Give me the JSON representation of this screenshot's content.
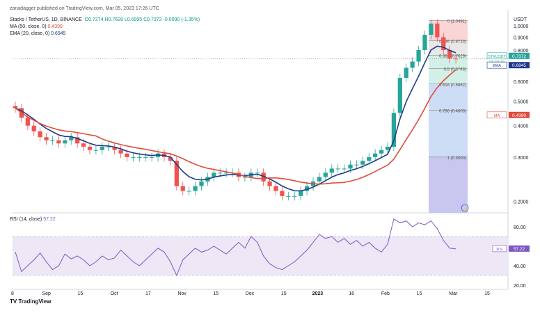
{
  "header": {
    "published": "zanadagger published on TradingView.com, Mar 05, 2023 17:26 UTC",
    "symbol": "Stacks / TetherUS, 1D, BINANCE",
    "ohlc": "O0.7274 H0.7628 L0.6995 C0.7372 -0.0090 (-1.35%)",
    "ma_label": "MA (50, close, 0)",
    "ma_value": "0.4399",
    "ema_label": "EMA (20, close, 0)",
    "ema_value": "0.6945",
    "rsi_label": "RSI (14, close)",
    "rsi_value": "57.22",
    "brand": "TradingView"
  },
  "colors": {
    "up": "#26a69a",
    "down": "#ef5350",
    "ema": "#1e3a8a",
    "ma": "#e04b3c",
    "rsi": "#7e57c2",
    "rsi_band": "#ede7f6",
    "fib_red": "#f8d0d0",
    "fib_green": "#cdeee4",
    "fib_blue": "#c9d9f5",
    "fib_gray": "#e6e6e6",
    "fib_lavender": "#c9c6ef"
  },
  "chart_data": [
    {
      "type": "candlestick",
      "title": "Stacks / TetherUS, 1D, BINANCE",
      "unit": "USDT",
      "y_scale": "log",
      "y_ticks": [
        "1.0000",
        "0.9000",
        "0.8000",
        "0.7000",
        "0.6000",
        "0.5000",
        "0.4000",
        "0.3000",
        "0.2000"
      ],
      "y_tick_values": [
        1.0,
        0.9,
        0.8,
        0.7,
        0.6,
        0.5,
        0.4,
        0.3,
        0.2
      ],
      "x_ticks": [
        "8",
        "Sep",
        "15",
        "Oct",
        "17",
        "Nov",
        "15",
        "Dec",
        "15",
        "2023",
        "16",
        "Feb",
        "15",
        "Mar",
        "15"
      ],
      "close_series_approx": [
        0.47,
        0.43,
        0.4,
        0.38,
        0.36,
        0.35,
        0.35,
        0.34,
        0.35,
        0.36,
        0.34,
        0.33,
        0.32,
        0.32,
        0.33,
        0.33,
        0.32,
        0.31,
        0.3,
        0.3,
        0.3,
        0.3,
        0.3,
        0.31,
        0.3,
        0.29,
        0.23,
        0.22,
        0.22,
        0.23,
        0.24,
        0.25,
        0.26,
        0.26,
        0.26,
        0.26,
        0.25,
        0.25,
        0.26,
        0.26,
        0.24,
        0.23,
        0.22,
        0.21,
        0.21,
        0.21,
        0.22,
        0.23,
        0.24,
        0.25,
        0.26,
        0.27,
        0.27,
        0.27,
        0.28,
        0.28,
        0.29,
        0.3,
        0.31,
        0.32,
        0.33,
        0.45,
        0.62,
        0.68,
        0.72,
        0.8,
        0.92,
        1.02,
        0.9,
        0.8,
        0.74,
        0.7372
      ],
      "fib_levels": [
        {
          "label": "0 (1.0491)",
          "value": 1.0491
        },
        {
          "label": "0.236 (0.8723)",
          "value": 0.8723
        },
        {
          "label": "0.382 (0.7629)",
          "value": 0.7629
        },
        {
          "label": "0.5 (0.6746)",
          "value": 0.6746
        },
        {
          "label": "0.618 (0.5862)",
          "value": 0.5862
        },
        {
          "label": "0.786 (0.4603)",
          "value": 0.4603
        },
        {
          "label": "1 (0.3000)",
          "value": 0.3
        }
      ],
      "price_tags": [
        {
          "label": "STXUSDT",
          "value": "0.7372",
          "sub": "06:33:19",
          "color": "#26a69a"
        },
        {
          "label": "EMA",
          "value": "0.6945",
          "color": "#1e3a8a"
        },
        {
          "label": "MA",
          "value": "0.4399",
          "color": "#e04b3c"
        }
      ]
    },
    {
      "type": "line",
      "title": "RSI (14, close)",
      "ylim": [
        20,
        90
      ],
      "y_ticks": [
        "80.00",
        "40.00",
        "20.00"
      ],
      "y_tick_values": [
        80,
        40,
        20
      ],
      "band": [
        30,
        70
      ],
      "last_value": "57.22",
      "values_approx": [
        54,
        34,
        40,
        46,
        53,
        44,
        36,
        40,
        52,
        47,
        50,
        46,
        40,
        44,
        50,
        46,
        48,
        56,
        50,
        44,
        40,
        46,
        52,
        58,
        54,
        44,
        30,
        46,
        52,
        58,
        54,
        56,
        60,
        56,
        52,
        58,
        64,
        58,
        70,
        64,
        50,
        42,
        38,
        36,
        40,
        44,
        50,
        56,
        64,
        72,
        68,
        70,
        64,
        68,
        62,
        66,
        60,
        64,
        58,
        54,
        62,
        88,
        84,
        86,
        80,
        84,
        82,
        86,
        78,
        66,
        58,
        57.22
      ]
    }
  ]
}
